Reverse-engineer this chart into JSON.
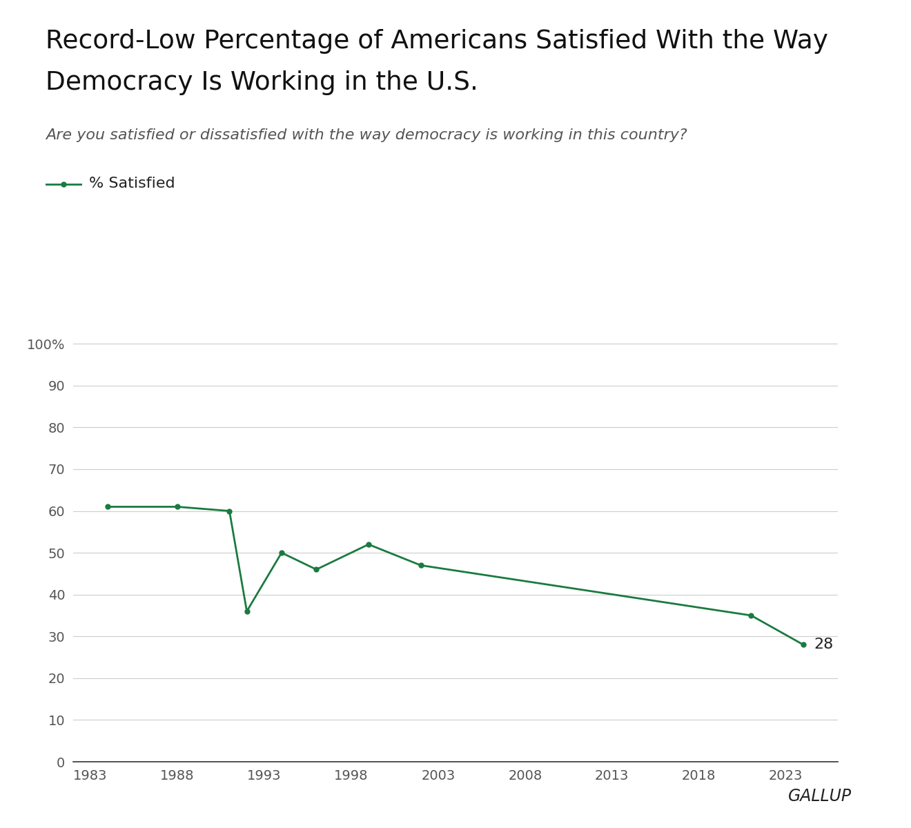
{
  "title_line1": "Record-Low Percentage of Americans Satisfied With the Way",
  "title_line2": "Democracy Is Working in the U.S.",
  "subtitle": "Are you satisfied or dissatisfied with the way democracy is working in this country?",
  "legend_label": "% Satisfied",
  "line_color": "#1a7a40",
  "marker_color": "#1a7a40",
  "background_color": "#ffffff",
  "years": [
    1984,
    1988,
    1991,
    1992,
    1994,
    1996,
    1999,
    2002,
    2021,
    2024
  ],
  "values": [
    61,
    61,
    60,
    36,
    50,
    46,
    52,
    47,
    35,
    28
  ],
  "last_label": "28",
  "yticks": [
    0,
    10,
    20,
    30,
    40,
    50,
    60,
    70,
    80,
    90,
    100
  ],
  "ytick_labels": [
    "0",
    "10",
    "20",
    "30",
    "40",
    "50",
    "60",
    "70",
    "80",
    "90",
    "100%"
  ],
  "xticks": [
    1983,
    1988,
    1993,
    1998,
    2003,
    2008,
    2013,
    2018,
    2023
  ],
  "xlim": [
    1982,
    2026
  ],
  "ylim": [
    0,
    103
  ],
  "gallup_text": "GALLUP",
  "title_fontsize": 27,
  "subtitle_fontsize": 16,
  "legend_fontsize": 16,
  "axis_fontsize": 14,
  "gallup_fontsize": 17,
  "annotation_fontsize": 16
}
